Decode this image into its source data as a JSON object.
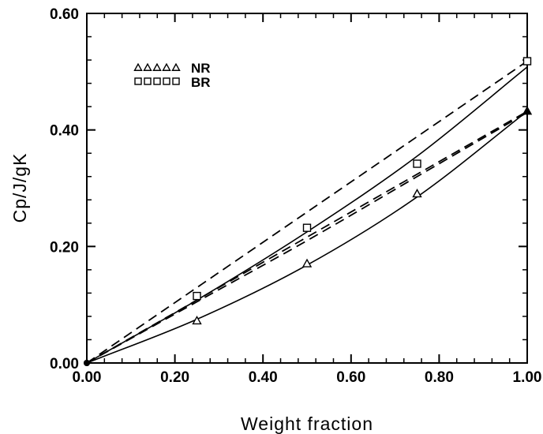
{
  "chart_data": {
    "type": "scatter",
    "xlabel": "Weight fraction",
    "ylabel": "Cp/J/gK",
    "xlim": [
      0,
      1
    ],
    "ylim": [
      0,
      0.6
    ],
    "xticks": [
      "0.00",
      "0.20",
      "0.40",
      "0.60",
      "0.80",
      "1.00"
    ],
    "yticks": [
      "0.00",
      "0.20",
      "0.40",
      "0.60"
    ],
    "grid": false,
    "legend_position": "top-left",
    "series": [
      {
        "name": "NR",
        "marker": "triangle",
        "x": [
          0,
          0.25,
          0.5,
          0.75,
          1.0
        ],
        "y": [
          0,
          0.072,
          0.17,
          0.29,
          0.432
        ],
        "fit_curve": {
          "style": "solid",
          "x": [
            0,
            0.25,
            0.5,
            0.75,
            1.0
          ],
          "y": [
            0,
            0.075,
            0.168,
            0.285,
            0.432
          ]
        },
        "additive_line": {
          "style": "dashed",
          "x": [
            0,
            1.0
          ],
          "y": [
            0,
            0.432
          ]
        }
      },
      {
        "name": "BR",
        "marker": "square",
        "x": [
          0,
          0.25,
          0.5,
          0.75,
          1.0
        ],
        "y": [
          0,
          0.115,
          0.232,
          0.342,
          0.518
        ],
        "fit_curve": {
          "style": "solid",
          "x": [
            0,
            0.25,
            0.5,
            0.75,
            1.0
          ],
          "y": [
            0,
            0.108,
            0.225,
            0.355,
            0.508
          ]
        },
        "additive_line": {
          "style": "dashed",
          "x": [
            0,
            1.0
          ],
          "y": [
            0,
            0.518
          ]
        }
      }
    ],
    "extra_dashed_curve": {
      "style": "dashed",
      "x": [
        0,
        0.25,
        0.5,
        0.75,
        1.0
      ],
      "y": [
        0,
        0.105,
        0.21,
        0.32,
        0.43
      ]
    }
  }
}
